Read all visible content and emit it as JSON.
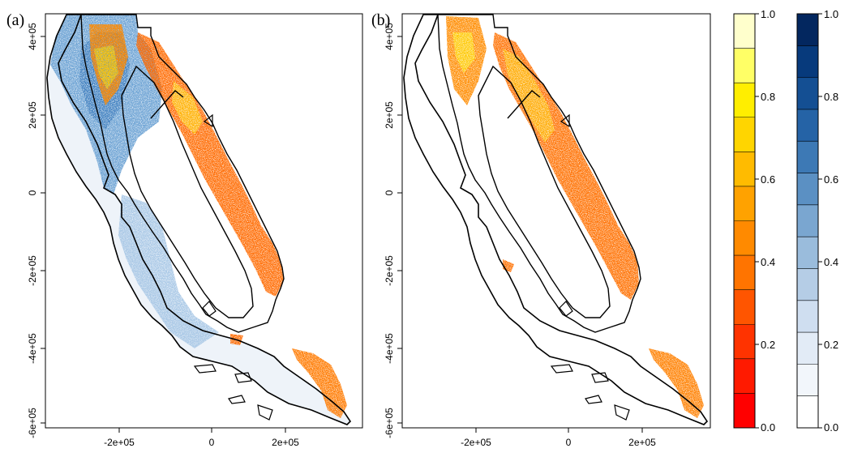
{
  "panels": [
    {
      "tag": "(a)",
      "x_ticks": [
        "-2e+05",
        "0",
        "2e+05"
      ],
      "y_ticks": [
        "4e+05",
        "2e+05",
        "0",
        "-2e+05",
        "-4e+05",
        "-6e+05"
      ]
    },
    {
      "tag": "(b)",
      "x_ticks": [
        "-2e+05",
        "0",
        "2e+05"
      ],
      "y_ticks": [
        "4e+05",
        "2e+05",
        "0",
        "-2e+05",
        "-4e+05",
        "-6e+05"
      ]
    }
  ],
  "legends": [
    {
      "name": "orange-scale",
      "ticks": [
        "1.0",
        "0.8",
        "0.6",
        "0.4",
        "0.2",
        "0.0"
      ],
      "colors": [
        "#ff0000",
        "#ff1a00",
        "#ff3300",
        "#ff5500",
        "#ff7400",
        "#ff8a00",
        "#ffa200",
        "#ffbb00",
        "#ffd500",
        "#ffee00",
        "#ffff66",
        "#ffffcc"
      ]
    },
    {
      "name": "blue-scale",
      "ticks": [
        "1.0",
        "0.8",
        "0.6",
        "0.4",
        "0.2",
        "0.0"
      ],
      "colors": [
        "#ffffff",
        "#f2f6fb",
        "#e2ebf6",
        "#cfdef0",
        "#b5cde6",
        "#9abcdc",
        "#7aa6d0",
        "#5b90c3",
        "#3d79b5",
        "#2563a6",
        "#144f93",
        "#073a7c",
        "#03275f"
      ]
    }
  ],
  "colors": {
    "land_blue": "#8fb7dd",
    "land_blue_dark": "#5b92c6",
    "orange": "#ff6a00",
    "orange_dark": "#ff4200",
    "yellow": "#ffc400",
    "outline": "#000000"
  }
}
